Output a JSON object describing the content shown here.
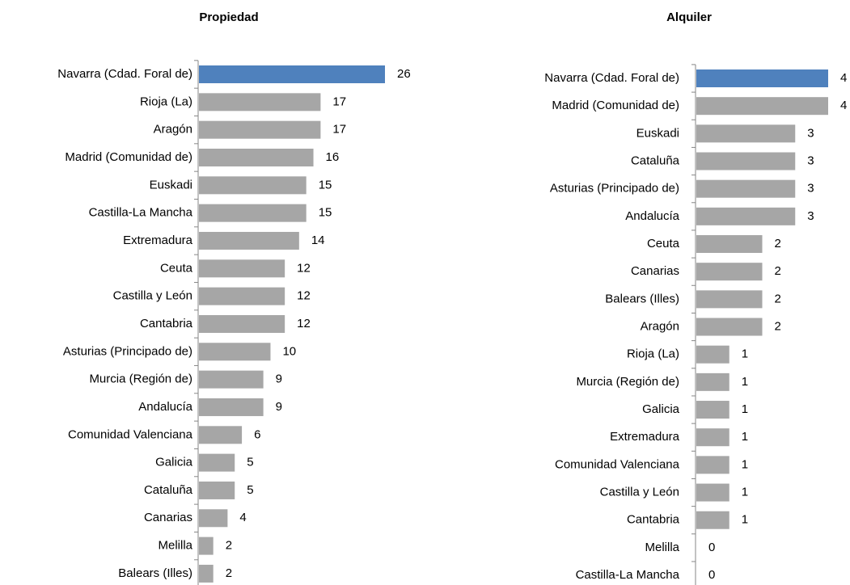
{
  "chart_data": [
    {
      "type": "barh",
      "title": "Propiedad",
      "categories": [
        "Navarra (Cdad. Foral de)",
        "Rioja (La)",
        "Aragón",
        "Madrid (Comunidad de)",
        "Euskadi",
        "Castilla-La Mancha",
        "Extremadura",
        "Ceuta",
        "Castilla y León",
        "Cantabria",
        "Asturias (Principado de)",
        "Murcia (Región de)",
        "Andalucía",
        "Comunidad Valenciana",
        "Galicia",
        "Cataluña",
        "Canarias",
        "Melilla",
        "Balears (Illes)"
      ],
      "values": [
        26,
        17,
        17,
        16,
        15,
        15,
        14,
        12,
        12,
        12,
        10,
        9,
        9,
        6,
        5,
        5,
        4,
        2,
        2
      ],
      "colors": [
        "#4f81bd",
        "#a6a6a6",
        "#a6a6a6",
        "#a6a6a6",
        "#a6a6a6",
        "#a6a6a6",
        "#a6a6a6",
        "#a6a6a6",
        "#a6a6a6",
        "#a6a6a6",
        "#a6a6a6",
        "#a6a6a6",
        "#a6a6a6",
        "#a6a6a6",
        "#a6a6a6",
        "#a6a6a6",
        "#a6a6a6",
        "#a6a6a6",
        "#a6a6a6"
      ]
    },
    {
      "type": "barh",
      "title": "Alquiler",
      "categories": [
        "Navarra (Cdad. Foral de)",
        "Madrid (Comunidad de)",
        "Euskadi",
        "Cataluña",
        "Asturias (Principado de)",
        "Andalucía",
        "Ceuta",
        "Canarias",
        "Balears (Illes)",
        "Aragón",
        "Rioja (La)",
        "Murcia (Región de)",
        "Galicia",
        "Extremadura",
        "Comunidad Valenciana",
        "Castilla y León",
        "Cantabria",
        "Melilla",
        "Castilla-La Mancha"
      ],
      "values": [
        4,
        4,
        3,
        3,
        3,
        3,
        2,
        2,
        2,
        2,
        1,
        1,
        1,
        1,
        1,
        1,
        1,
        0,
        0
      ],
      "colors": [
        "#4f81bd",
        "#a6a6a6",
        "#a6a6a6",
        "#a6a6a6",
        "#a6a6a6",
        "#a6a6a6",
        "#a6a6a6",
        "#a6a6a6",
        "#a6a6a6",
        "#a6a6a6",
        "#a6a6a6",
        "#a6a6a6",
        "#a6a6a6",
        "#a6a6a6",
        "#a6a6a6",
        "#a6a6a6",
        "#a6a6a6",
        "#a6a6a6",
        "#a6a6a6"
      ]
    }
  ]
}
